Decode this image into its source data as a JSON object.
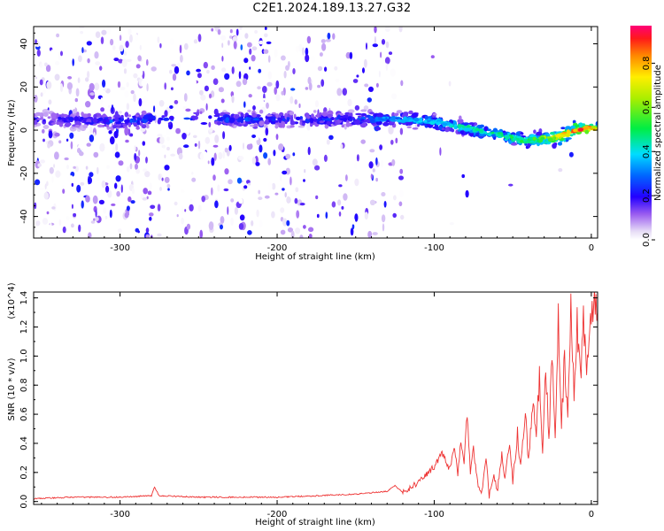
{
  "title": "C2E1.2024.189.13.27.G32",
  "chart_data": [
    {
      "type": "heatmap",
      "xlabel": "Height of straight line (km)",
      "ylabel": "Frequency (Hz)",
      "xlim": [
        -355,
        4
      ],
      "ylim": [
        -50,
        48
      ],
      "xticks": [
        -300,
        -200,
        -100,
        0
      ],
      "yticks": [
        -40,
        -20,
        0,
        20,
        40
      ],
      "colorbar": {
        "label": "Normalized spectral amplitude",
        "range": [
          0.0,
          0.97
        ],
        "ticks": [
          0.0,
          0.2,
          0.4,
          0.6,
          0.8
        ]
      },
      "ridge": {
        "x": [
          -355,
          -300,
          -280,
          -200,
          -150,
          -120,
          -100,
          -80,
          -60,
          -40,
          -20,
          -10,
          0,
          4
        ],
        "frequency": [
          5,
          4,
          5,
          5,
          5,
          5,
          4,
          1,
          -2,
          -5,
          -3,
          0,
          1,
          1
        ],
        "peak_amplitude": [
          0.2,
          0.3,
          0.35,
          0.25,
          0.3,
          0.35,
          0.4,
          0.45,
          0.5,
          0.5,
          0.75,
          0.95,
          0.85,
          0.7
        ]
      }
    },
    {
      "type": "line",
      "xlabel": "Height of straight line (km)",
      "ylabel": "SNR (10 * v/v)",
      "y_multiplier": "(x10^4)",
      "xlim": [
        -355,
        4
      ],
      "ylim": [
        -0.02,
        1.44
      ],
      "xticks": [
        -300,
        -200,
        -100,
        0
      ],
      "yticks": [
        0.0,
        0.2,
        0.4,
        0.6,
        0.8,
        1.0,
        1.2,
        1.4
      ],
      "series": [
        {
          "color": "#ee3333",
          "x": [
            -355,
            -330,
            -300,
            -280,
            -278,
            -275,
            -250,
            -200,
            -150,
            -130,
            -125,
            -120,
            -115,
            -110,
            -105,
            -100,
            -95,
            -90,
            -87,
            -85,
            -83,
            -81,
            -79,
            -77,
            -75,
            -72,
            -70,
            -67,
            -65,
            -62,
            -60,
            -57,
            -55,
            -52,
            -50,
            -47,
            -45,
            -42,
            -40,
            -37,
            -35,
            -33,
            -31,
            -29,
            -27,
            -25,
            -23,
            -21,
            -19,
            -17,
            -15,
            -13,
            -11,
            -9,
            -7,
            -5,
            -3,
            -1,
            1,
            3,
            4
          ],
          "y": [
            0.02,
            0.03,
            0.03,
            0.04,
            0.1,
            0.04,
            0.03,
            0.03,
            0.05,
            0.07,
            0.11,
            0.06,
            0.09,
            0.14,
            0.19,
            0.24,
            0.33,
            0.22,
            0.38,
            0.18,
            0.42,
            0.26,
            0.62,
            0.2,
            0.36,
            0.1,
            0.05,
            0.29,
            0.04,
            0.18,
            0.07,
            0.32,
            0.13,
            0.41,
            0.14,
            0.46,
            0.22,
            0.61,
            0.27,
            0.72,
            0.42,
            0.9,
            0.33,
            0.98,
            0.41,
            1.1,
            0.48,
            1.33,
            0.52,
            1.0,
            0.63,
            1.3,
            0.72,
            1.27,
            0.82,
            1.3,
            0.85,
            1.2,
            1.25,
            1.45,
            1.3
          ]
        }
      ]
    }
  ]
}
